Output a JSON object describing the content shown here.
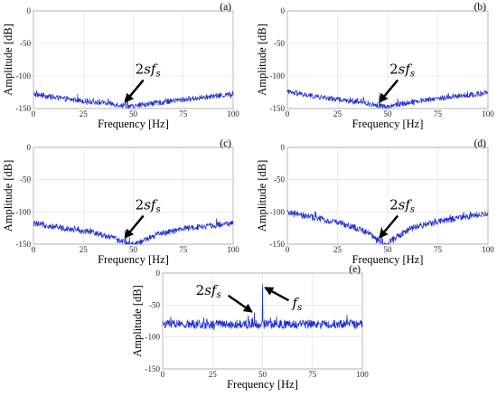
{
  "colors": {
    "series": "#1f2fd6",
    "arrow": "#000000"
  },
  "chart_data": [
    {
      "type": "line",
      "panel_label": "(a)",
      "xlabel": "Frequency [Hz]",
      "ylabel": "Amplitude [dB]",
      "xlim": [
        0,
        100
      ],
      "ylim": [
        -150,
        0
      ],
      "xticks": [
        "0",
        "25",
        "50",
        "75",
        "100"
      ],
      "yticks": [
        "0",
        "-50",
        "-100",
        "-150"
      ],
      "grid": true,
      "annotation": {
        "prefix": "2",
        "base": "sf",
        "sub": "s",
        "x": 46,
        "y": -148
      },
      "series": [
        {
          "profile": [
            [
              0,
              -128
            ],
            [
              15,
              -135
            ],
            [
              30,
              -140
            ],
            [
              40,
              -143
            ],
            [
              46,
              -146
            ],
            [
              50,
              -147
            ],
            [
              58,
              -143
            ],
            [
              70,
              -138
            ],
            [
              85,
              -133
            ],
            [
              100,
              -128
            ]
          ],
          "noise": 8,
          "spikes": [
            [
              30,
              -134
            ],
            [
              46,
              -134
            ],
            [
              47,
              -137
            ]
          ]
        }
      ]
    },
    {
      "type": "line",
      "panel_label": "(b)",
      "xlabel": "Frequency [Hz]",
      "ylabel": "Amplitude [dB]",
      "xlim": [
        0,
        100
      ],
      "ylim": [
        -150,
        0
      ],
      "xticks": [
        "0",
        "25",
        "50",
        "75",
        "100"
      ],
      "yticks": [
        "0",
        "-50",
        "-100",
        "-150"
      ],
      "grid": true,
      "annotation": {
        "prefix": "2",
        "base": "sf",
        "sub": "s",
        "x": 46,
        "y": -148
      },
      "series": [
        {
          "profile": [
            [
              0,
              -125
            ],
            [
              15,
              -132
            ],
            [
              30,
              -138
            ],
            [
              40,
              -142
            ],
            [
              46,
              -146
            ],
            [
              50,
              -147
            ],
            [
              58,
              -142
            ],
            [
              70,
              -136
            ],
            [
              85,
              -131
            ],
            [
              100,
              -126
            ]
          ],
          "noise": 8,
          "spikes": [
            [
              46,
              -126
            ],
            [
              38,
              -133
            ],
            [
              55,
              -135
            ]
          ]
        }
      ]
    },
    {
      "type": "line",
      "panel_label": "(c)",
      "xlabel": "Frequency [Hz]",
      "ylabel": "Amplitude [dB]",
      "xlim": [
        0,
        100
      ],
      "ylim": [
        -150,
        0
      ],
      "xticks": [
        "0",
        "25",
        "50",
        "75",
        "100"
      ],
      "yticks": [
        "0",
        "-50",
        "-100",
        "-150"
      ],
      "grid": true,
      "annotation": {
        "prefix": "2",
        "base": "sf",
        "sub": "s",
        "x": 46,
        "y": -148
      },
      "series": [
        {
          "profile": [
            [
              0,
              -118
            ],
            [
              15,
              -125
            ],
            [
              30,
              -132
            ],
            [
              40,
              -140
            ],
            [
              46,
              -148
            ],
            [
              50,
              -150
            ],
            [
              55,
              -145
            ],
            [
              62,
              -135
            ],
            [
              75,
              -126
            ],
            [
              100,
              -118
            ]
          ],
          "noise": 9,
          "spikes": [
            [
              46,
              -128
            ],
            [
              30,
              -128
            ]
          ]
        }
      ]
    },
    {
      "type": "line",
      "panel_label": "(d)",
      "xlabel": "Frequency [Hz]",
      "ylabel": "Amplitude [dB]",
      "xlim": [
        0,
        100
      ],
      "ylim": [
        -150,
        0
      ],
      "xticks": [
        "0",
        "25",
        "50",
        "75",
        "100"
      ],
      "yticks": [
        "0",
        "-50",
        "-100",
        "-150"
      ],
      "grid": true,
      "annotation": {
        "prefix": "2",
        "base": "sf",
        "sub": "s",
        "x": 46,
        "y": -148
      },
      "series": [
        {
          "profile": [
            [
              0,
              -102
            ],
            [
              15,
              -110
            ],
            [
              30,
              -120
            ],
            [
              40,
              -132
            ],
            [
              46,
              -146
            ],
            [
              49,
              -150
            ],
            [
              54,
              -140
            ],
            [
              62,
              -125
            ],
            [
              75,
              -115
            ],
            [
              100,
              -103
            ]
          ],
          "noise": 10,
          "spikes": [
            [
              47,
              -124
            ],
            [
              20,
              -112
            ]
          ]
        }
      ]
    },
    {
      "type": "line",
      "panel_label": "(e)",
      "xlabel": "Frequency [Hz]",
      "ylabel": "Amplitude [dB]",
      "xlim": [
        0,
        100
      ],
      "ylim": [
        -150,
        0
      ],
      "xticks": [
        "0",
        "25",
        "50",
        "75",
        "100"
      ],
      "yticks": [
        "0",
        "-50",
        "-100",
        "-150"
      ],
      "grid": true,
      "annotation": {
        "prefix": "2",
        "base": "sf",
        "sub": "s",
        "x": 46,
        "y": -62
      },
      "annotation2": {
        "base": "f",
        "sub": "s",
        "x": 50,
        "y": -20
      },
      "series": [
        {
          "profile": [
            [
              0,
              -80
            ],
            [
              25,
              -80
            ],
            [
              50,
              -80
            ],
            [
              75,
              -80
            ],
            [
              100,
              -80
            ]
          ],
          "noise": 14,
          "spikes": [
            [
              50,
              -18
            ],
            [
              46,
              -62
            ],
            [
              45,
              -70
            ],
            [
              54,
              -70
            ]
          ]
        }
      ]
    }
  ]
}
